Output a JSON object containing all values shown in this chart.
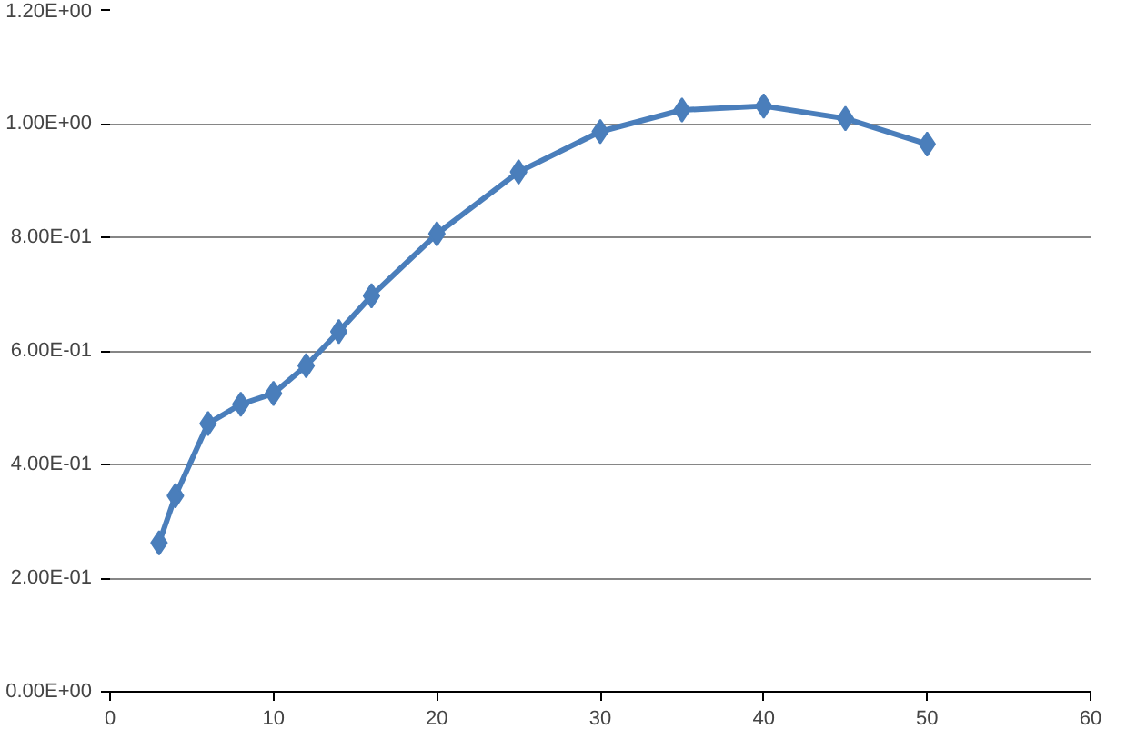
{
  "chart_data": {
    "type": "line",
    "x": [
      3,
      4,
      6,
      8,
      10,
      12,
      14,
      16,
      20,
      25,
      30,
      35,
      40,
      45,
      50
    ],
    "series": [
      {
        "color": "#4a7ebb",
        "values": [
          0.262,
          0.345,
          0.472,
          0.506,
          0.525,
          0.574,
          0.634,
          0.697,
          0.806,
          0.915,
          0.986,
          1.024,
          1.031,
          1.009,
          0.964
        ]
      }
    ],
    "xlim": [
      0,
      60
    ],
    "xticks": [
      0,
      10,
      20,
      30,
      40,
      50,
      60
    ],
    "ylim": [
      0,
      1.2
    ],
    "yticks": [
      {
        "value": 0,
        "label": "0.00E+00"
      },
      {
        "value": 0.2,
        "label": "2.00E-01"
      },
      {
        "value": 0.4,
        "label": "4.00E-01"
      },
      {
        "value": 0.6,
        "label": "6.00E-01"
      },
      {
        "value": 0.8,
        "label": "8.00E-01"
      },
      {
        "value": 1.0,
        "label": "1.00E+00"
      },
      {
        "value": 1.2,
        "label": "1.20E+00"
      }
    ],
    "grid": "y",
    "marker": "diamond",
    "line_style": "solid"
  }
}
